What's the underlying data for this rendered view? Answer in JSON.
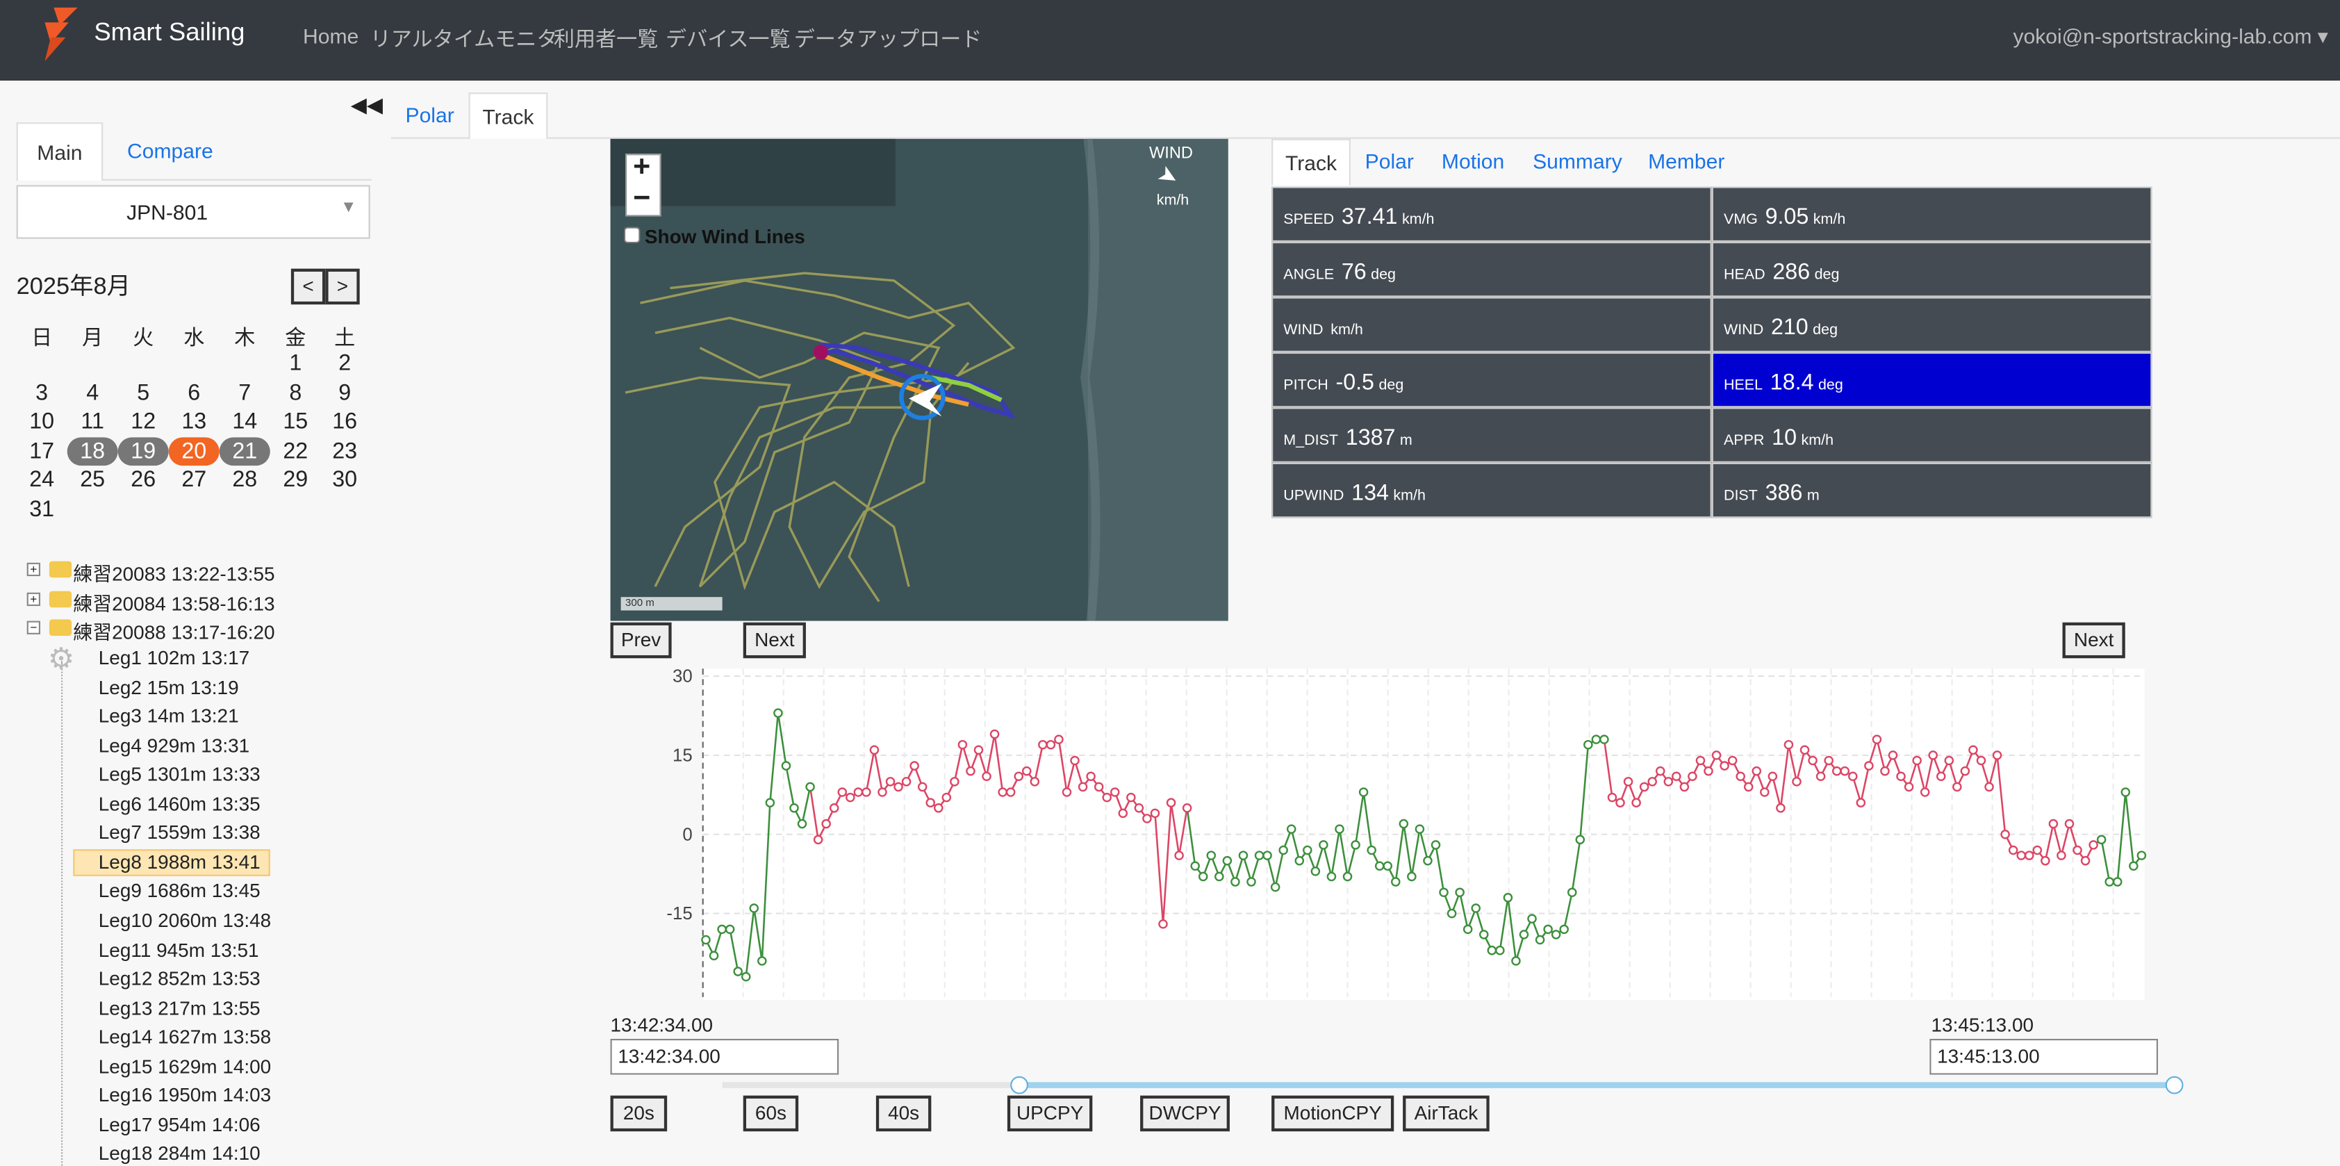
{
  "header": {
    "brand": "Smart Sailing",
    "nav": [
      "Home",
      "リアルタイムモニタ",
      "利用者一覧",
      "デバイス一覧",
      "データアップロード"
    ],
    "user": "yokoi@n-sportstracking-lab.com"
  },
  "sidebar": {
    "tabs": [
      "Main",
      "Compare"
    ],
    "device": "JPN-801",
    "calendar": {
      "title": "2025年8月",
      "prev": "<",
      "next": ">",
      "weekdays": [
        "日",
        "月",
        "火",
        "水",
        "木",
        "金",
        "土"
      ],
      "weeks": [
        [
          null,
          null,
          null,
          null,
          null,
          1,
          2
        ],
        [
          3,
          4,
          5,
          6,
          7,
          8,
          9
        ],
        [
          10,
          11,
          12,
          13,
          14,
          15,
          16
        ],
        [
          17,
          18,
          19,
          20,
          21,
          22,
          23
        ],
        [
          24,
          25,
          26,
          27,
          28,
          29,
          30
        ],
        [
          31
        ]
      ],
      "selected": [
        18,
        19,
        21
      ],
      "today": 20
    },
    "folders": [
      "練習20083 13:22-13:55",
      "練習20084 13:58-16:13",
      "練習20088 13:17-16:20"
    ],
    "legs": [
      "Leg1 102m 13:17",
      "Leg2 15m 13:19",
      "Leg3 14m 13:21",
      "Leg4 929m 13:31",
      "Leg5 1301m 13:33",
      "Leg6 1460m 13:35",
      "Leg7 1559m 13:38",
      "Leg8 1988m 13:41",
      "Leg9 1686m 13:45",
      "Leg10 2060m 13:48",
      "Leg11 945m 13:51",
      "Leg12 852m 13:53",
      "Leg13 217m 13:55",
      "Leg14 1627m 13:58",
      "Leg15 1629m 14:00",
      "Leg16 1950m 14:03",
      "Leg17 954m 14:06",
      "Leg18 284m 14:10"
    ],
    "active_leg": 7
  },
  "main_tabs": [
    "Polar",
    "Track"
  ],
  "active_main_tab": 1,
  "map": {
    "zoom_in": "+",
    "zoom_out": "−",
    "wind_lines": "Show Wind Lines",
    "wind": "WIND",
    "wind_unit": "km/h",
    "scale": "300 m"
  },
  "stats": {
    "tabs": [
      "Track",
      "Polar",
      "Motion",
      "Summary",
      "Member"
    ],
    "active_tab": 0,
    "cells": [
      [
        {
          "label": "SPEED",
          "value": "37.41",
          "unit": "km/h"
        },
        {
          "label": "VMG",
          "value": "9.05",
          "unit": "km/h"
        }
      ],
      [
        {
          "label": "ANGLE",
          "value": "76",
          "unit": "deg"
        },
        {
          "label": "HEAD",
          "value": "286",
          "unit": "deg"
        }
      ],
      [
        {
          "label": "WIND",
          "unit": "km/h"
        },
        {
          "label": "WIND",
          "value": "210",
          "unit": "deg"
        }
      ],
      [
        {
          "label": "PITCH",
          "value": "-0.5",
          "unit": "deg"
        },
        {
          "label": "HEEL",
          "value": "18.4",
          "unit": "deg",
          "highlight": true
        }
      ],
      [
        {
          "label": "M_DIST",
          "value": "1387",
          "unit": "m"
        },
        {
          "label": "APPR",
          "value": "10",
          "unit": "km/h"
        }
      ],
      [
        {
          "label": "UPWIND",
          "value": "134",
          "unit": "km/h"
        },
        {
          "label": "DIST",
          "value": "386",
          "unit": "m"
        }
      ]
    ]
  },
  "controls": {
    "prev": "Prev",
    "next": "Next",
    "next_right": "Next",
    "start_time": "13:42:34.00",
    "end_time": "13:45:13.00",
    "buttons": [
      "20s",
      "60s",
      "40s",
      "UPCPY",
      "DWCPY",
      "MotionCPY",
      "AirTack"
    ]
  },
  "chart_data": {
    "type": "line",
    "values": [
      -20,
      -23,
      -18,
      -18,
      -26,
      -27,
      -14,
      -24,
      6,
      23,
      13,
      5,
      2,
      9,
      -1,
      2,
      5,
      8,
      7,
      8,
      8,
      16,
      8,
      10,
      9,
      10,
      13,
      9,
      6,
      5,
      7,
      10,
      17,
      12,
      16,
      11,
      19,
      8,
      8,
      11,
      12,
      10,
      17,
      17,
      18,
      8,
      14,
      9,
      11,
      9,
      7,
      8,
      4,
      7,
      5,
      3,
      4,
      -17,
      6,
      -4,
      5,
      -6,
      -8,
      -4,
      -8,
      -5,
      -9,
      -4,
      -9,
      -4,
      -4,
      -10,
      -3,
      1,
      -5,
      -3,
      -7,
      -2,
      -8,
      1,
      -8,
      -2,
      8,
      -3,
      -6,
      -6,
      -9,
      2,
      -8,
      1,
      -5,
      -2,
      -11,
      -15,
      -11,
      -18,
      -14,
      -19,
      -22,
      -22,
      -12,
      -24,
      -19,
      -16,
      -20,
      -18,
      -19,
      -18,
      -11,
      -1,
      17,
      18,
      18,
      7,
      6,
      10,
      6,
      9,
      10,
      12,
      10,
      11,
      9,
      11,
      14,
      12,
      15,
      13,
      14,
      11,
      9,
      12,
      8,
      11,
      5,
      17,
      10,
      16,
      14,
      11,
      14,
      12,
      12,
      11,
      6,
      13,
      18,
      12,
      15,
      11,
      9,
      14,
      8,
      15,
      11,
      14,
      9,
      12,
      16,
      14,
      9,
      15,
      0,
      -3,
      -4,
      -4,
      -3,
      -5,
      2,
      -4,
      2,
      -3,
      -5,
      -2,
      -1,
      -9,
      -9,
      8,
      -6,
      -4
    ],
    "point_colors": [
      "#3c8f3c",
      "#3c8f3c",
      "#3c8f3c",
      "#3c8f3c",
      "#3c8f3c",
      "#3c8f3c",
      "#3c8f3c",
      "#3c8f3c",
      "#3c8f3c",
      "#3c8f3c",
      "#3c8f3c",
      "#3c8f3c",
      "#3c8f3c",
      "#3c8f3c",
      "#dc4565",
      "#dc4565",
      "#dc4565",
      "#dc4565",
      "#dc4565",
      "#dc4565",
      "#dc4565",
      "#dc4565",
      "#dc4565",
      "#dc4565",
      "#dc4565",
      "#dc4565",
      "#dc4565",
      "#dc4565",
      "#dc4565",
      "#dc4565",
      "#dc4565",
      "#dc4565",
      "#dc4565",
      "#dc4565",
      "#dc4565",
      "#dc4565",
      "#dc4565",
      "#dc4565",
      "#dc4565",
      "#dc4565",
      "#dc4565",
      "#dc4565",
      "#dc4565",
      "#dc4565",
      "#dc4565",
      "#dc4565",
      "#dc4565",
      "#dc4565",
      "#dc4565",
      "#dc4565",
      "#dc4565",
      "#dc4565",
      "#dc4565",
      "#dc4565",
      "#dc4565",
      "#dc4565",
      "#dc4565",
      "#dc4565",
      "#dc4565",
      "#dc4565",
      "#dc4565",
      "#3c8f3c",
      "#3c8f3c",
      "#3c8f3c",
      "#3c8f3c",
      "#3c8f3c",
      "#3c8f3c",
      "#3c8f3c",
      "#3c8f3c",
      "#3c8f3c",
      "#3c8f3c",
      "#3c8f3c",
      "#3c8f3c",
      "#3c8f3c",
      "#3c8f3c",
      "#3c8f3c",
      "#3c8f3c",
      "#3c8f3c",
      "#3c8f3c",
      "#3c8f3c",
      "#3c8f3c",
      "#3c8f3c",
      "#3c8f3c",
      "#3c8f3c",
      "#3c8f3c",
      "#3c8f3c",
      "#3c8f3c",
      "#3c8f3c",
      "#3c8f3c",
      "#3c8f3c",
      "#3c8f3c",
      "#3c8f3c",
      "#3c8f3c",
      "#3c8f3c",
      "#3c8f3c",
      "#3c8f3c",
      "#3c8f3c",
      "#3c8f3c",
      "#3c8f3c",
      "#3c8f3c",
      "#3c8f3c",
      "#3c8f3c",
      "#3c8f3c",
      "#3c8f3c",
      "#3c8f3c",
      "#3c8f3c",
      "#3c8f3c",
      "#3c8f3c",
      "#3c8f3c",
      "#3c8f3c",
      "#3c8f3c",
      "#3c8f3c",
      "#3c8f3c",
      "#dc4565",
      "#dc4565",
      "#dc4565",
      "#dc4565",
      "#dc4565",
      "#dc4565",
      "#dc4565",
      "#dc4565",
      "#dc4565",
      "#dc4565",
      "#dc4565",
      "#dc4565",
      "#dc4565",
      "#dc4565",
      "#dc4565",
      "#dc4565",
      "#dc4565",
      "#dc4565",
      "#dc4565",
      "#dc4565",
      "#dc4565",
      "#dc4565",
      "#dc4565",
      "#dc4565",
      "#dc4565",
      "#dc4565",
      "#dc4565",
      "#dc4565",
      "#dc4565",
      "#dc4565",
      "#dc4565",
      "#dc4565",
      "#dc4565",
      "#dc4565",
      "#dc4565",
      "#dc4565",
      "#dc4565",
      "#dc4565",
      "#dc4565",
      "#dc4565",
      "#dc4565",
      "#dc4565",
      "#dc4565",
      "#dc4565",
      "#dc4565",
      "#dc4565",
      "#dc4565",
      "#dc4565",
      "#dc4565",
      "#dc4565",
      "#dc4565",
      "#dc4565",
      "#dc4565",
      "#dc4565",
      "#dc4565",
      "#dc4565",
      "#dc4565",
      "#dc4565",
      "#dc4565",
      "#dc4565",
      "#dc4565",
      "#3c8f3c",
      "#3c8f3c",
      "#3c8f3c",
      "#3c8f3c",
      "#3c8f3c",
      "#3c8f3c"
    ],
    "ylim": [
      -30,
      30
    ],
    "yticks": [
      30,
      15,
      0,
      -15
    ],
    "grid": true
  }
}
